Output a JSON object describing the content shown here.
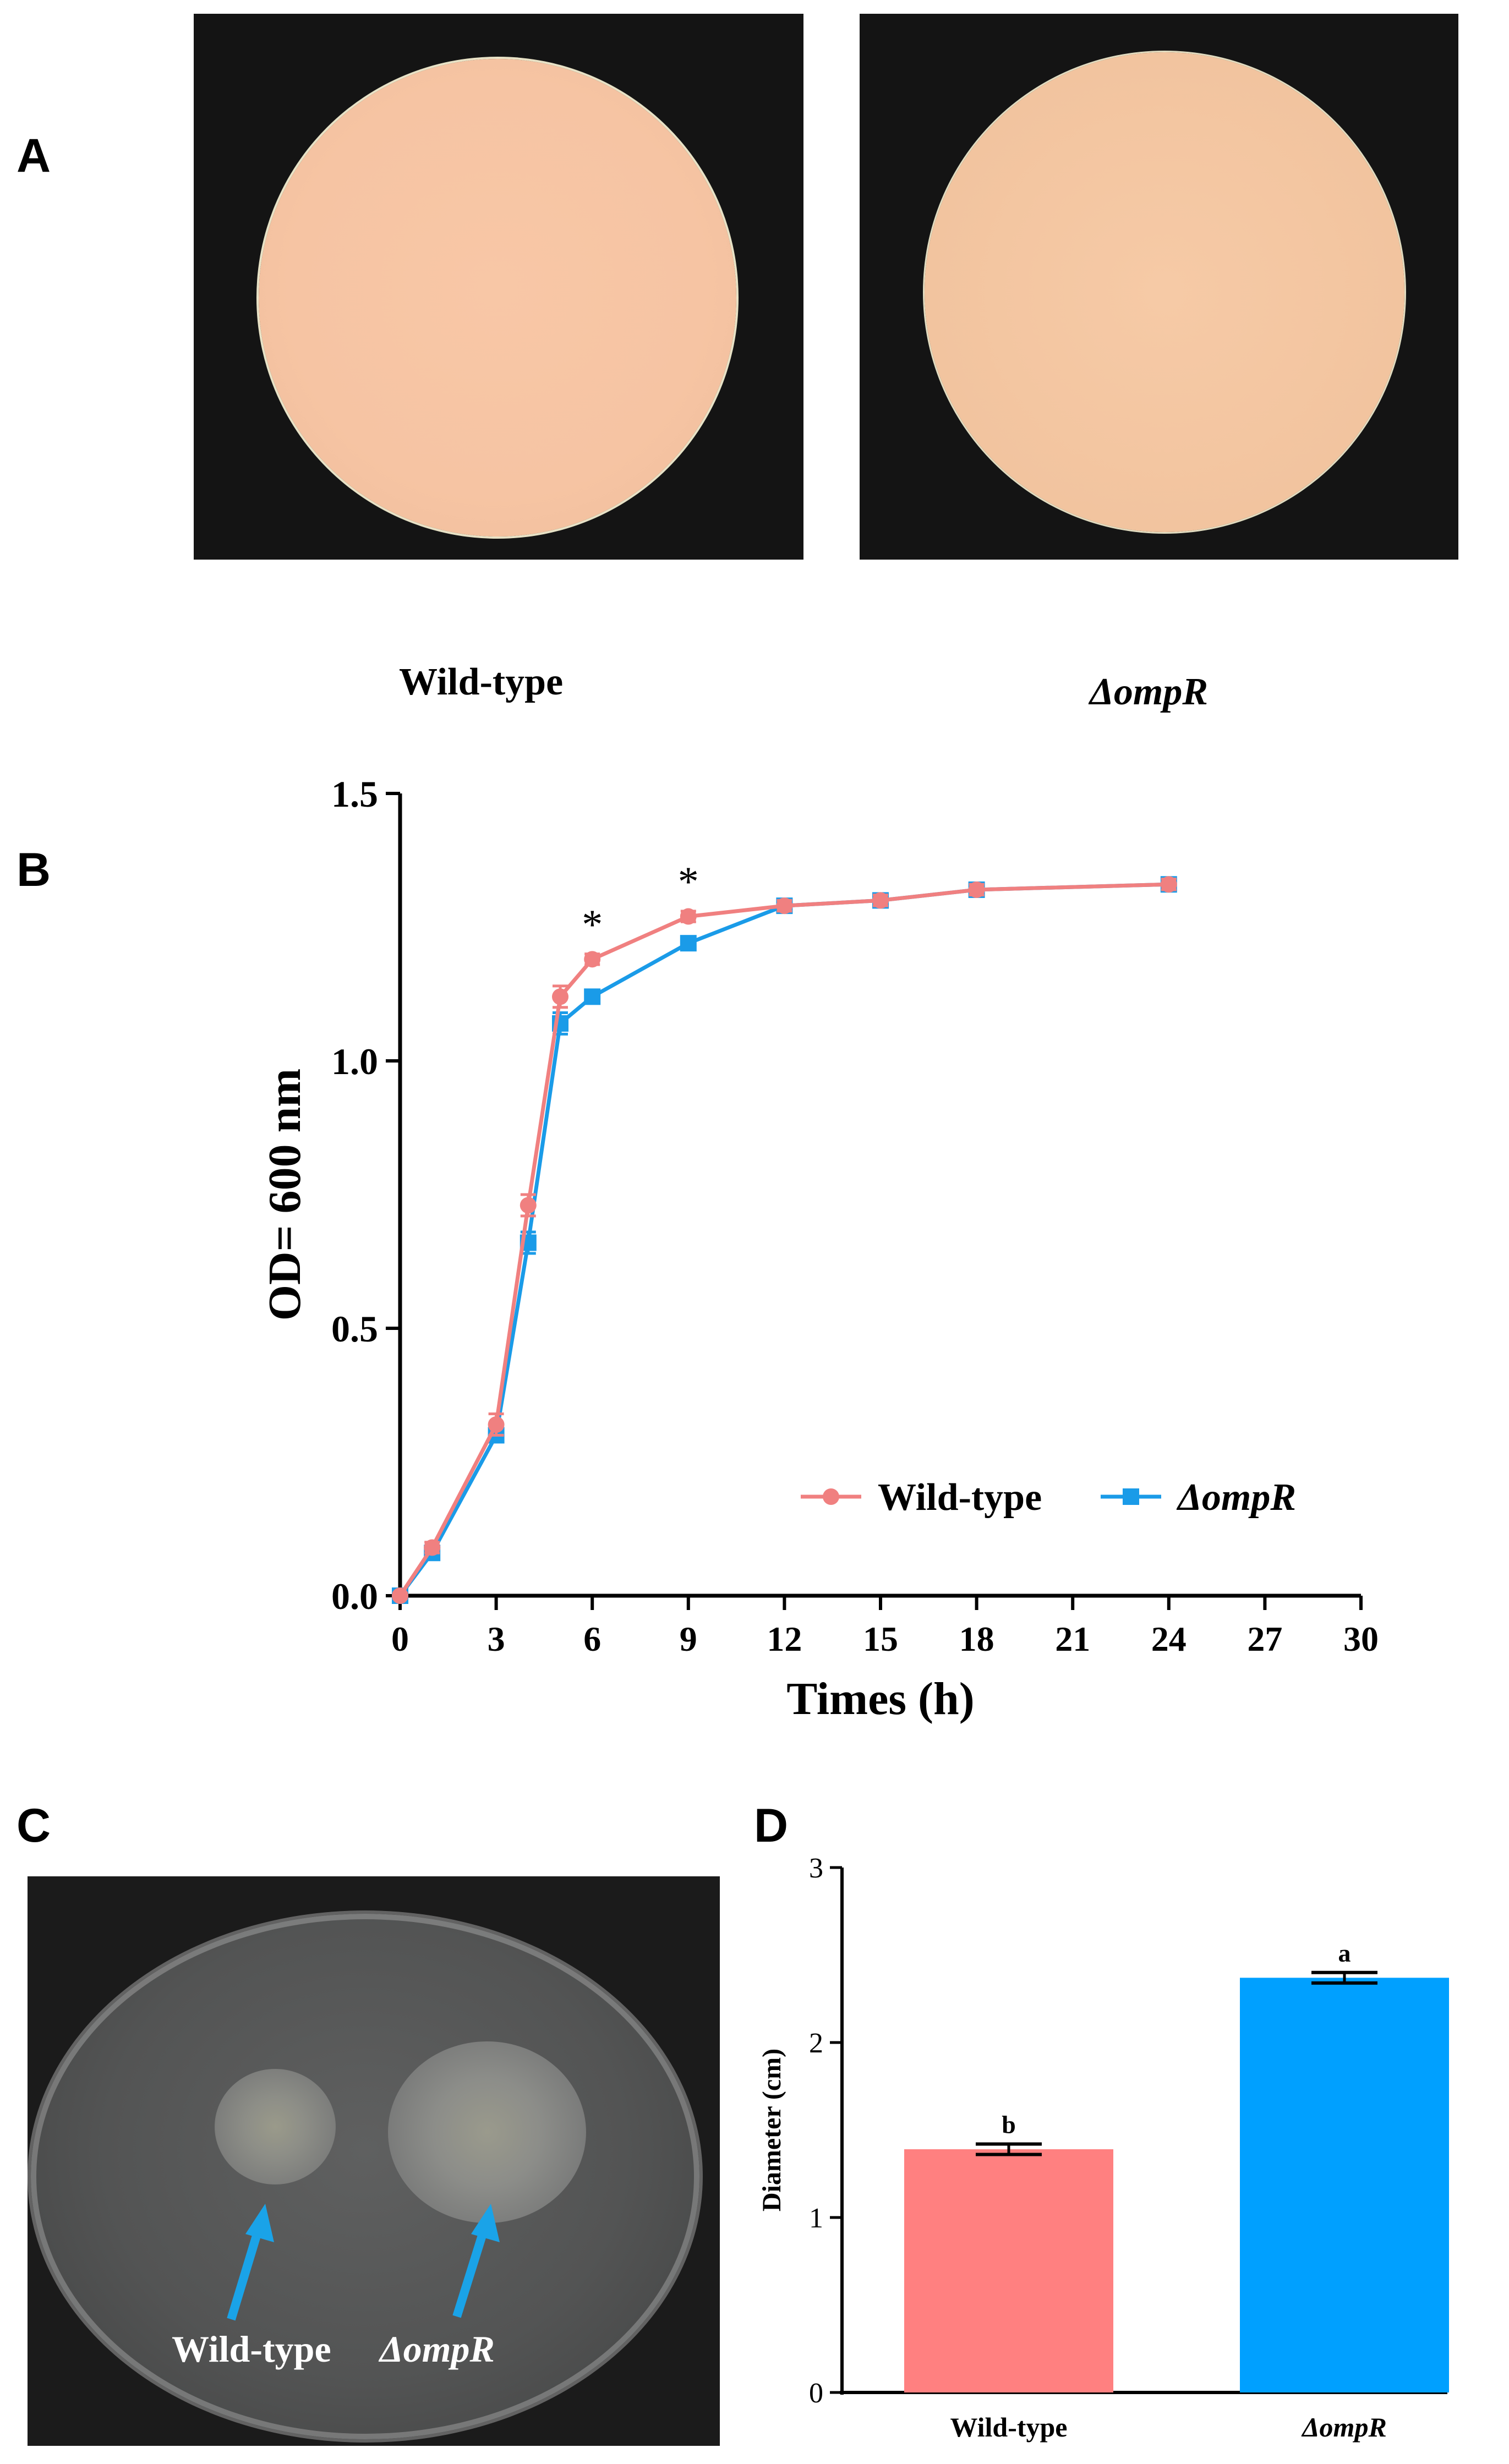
{
  "panels": {
    "a": {
      "letter": "A",
      "wild_label": "Wild-type",
      "mutant_label": "ΔompR"
    },
    "b": {
      "letter": "B"
    },
    "c": {
      "letter": "C",
      "wild_label": "Wild-type",
      "mutant_label": "ΔompR"
    },
    "d": {
      "letter": "D"
    }
  },
  "colors": {
    "wild": "#f08080",
    "mutant": "#1a9be8",
    "bar_wild": "#ff8080",
    "bar_mutant": "#00a0ff",
    "arrow": "#1aa3e8"
  },
  "chart_data": [
    {
      "type": "line",
      "panel": "B",
      "title": "",
      "xlabel": "Times (h)",
      "ylabel": "OD= 600 nm",
      "xlim": [
        0,
        30
      ],
      "ylim": [
        0,
        1.5
      ],
      "xticks": [
        0,
        3,
        6,
        9,
        12,
        15,
        18,
        21,
        24,
        27,
        30
      ],
      "yticks": [
        0.0,
        0.5,
        1.0,
        1.5
      ],
      "ytick_labels": [
        "0.0",
        "0.5",
        "1.0",
        "1.5"
      ],
      "legend_position": "bottom-right",
      "series": [
        {
          "name": "Wild-type",
          "marker": "circle",
          "x": [
            0,
            1,
            3,
            4,
            5,
            6,
            9,
            12,
            15,
            18,
            24
          ],
          "y": [
            0.0,
            0.09,
            0.32,
            0.73,
            1.12,
            1.19,
            1.27,
            1.29,
            1.3,
            1.32,
            1.33
          ],
          "err": [
            0.005,
            0.01,
            0.02,
            0.02,
            0.02,
            0.01,
            0.01,
            0.01,
            0.01,
            0.01,
            0.01
          ]
        },
        {
          "name": "ΔompR",
          "marker": "square",
          "x": [
            0,
            1,
            3,
            4,
            5,
            6,
            9,
            12,
            15,
            18,
            24
          ],
          "y": [
            0.0,
            0.08,
            0.3,
            0.66,
            1.07,
            1.12,
            1.22,
            1.29,
            1.3,
            1.32,
            1.33
          ],
          "err": [
            0.005,
            0.01,
            0.01,
            0.02,
            0.02,
            0.01,
            0.01,
            0.01,
            0.01,
            0.01,
            0.01
          ]
        }
      ],
      "annotations": [
        {
          "text": "*",
          "x": 6,
          "y": 1.19
        },
        {
          "text": "*",
          "x": 9,
          "y": 1.27
        }
      ]
    },
    {
      "type": "bar",
      "panel": "D",
      "title": "",
      "xlabel": "",
      "ylabel": "Diameter (cm)",
      "ylim": [
        0,
        3
      ],
      "yticks": [
        0,
        1,
        2,
        3
      ],
      "categories": [
        "Wild-type",
        "ΔompR"
      ],
      "values": [
        1.39,
        2.37
      ],
      "errors": [
        0.03,
        0.03
      ],
      "letters": [
        "b",
        "a"
      ]
    }
  ]
}
